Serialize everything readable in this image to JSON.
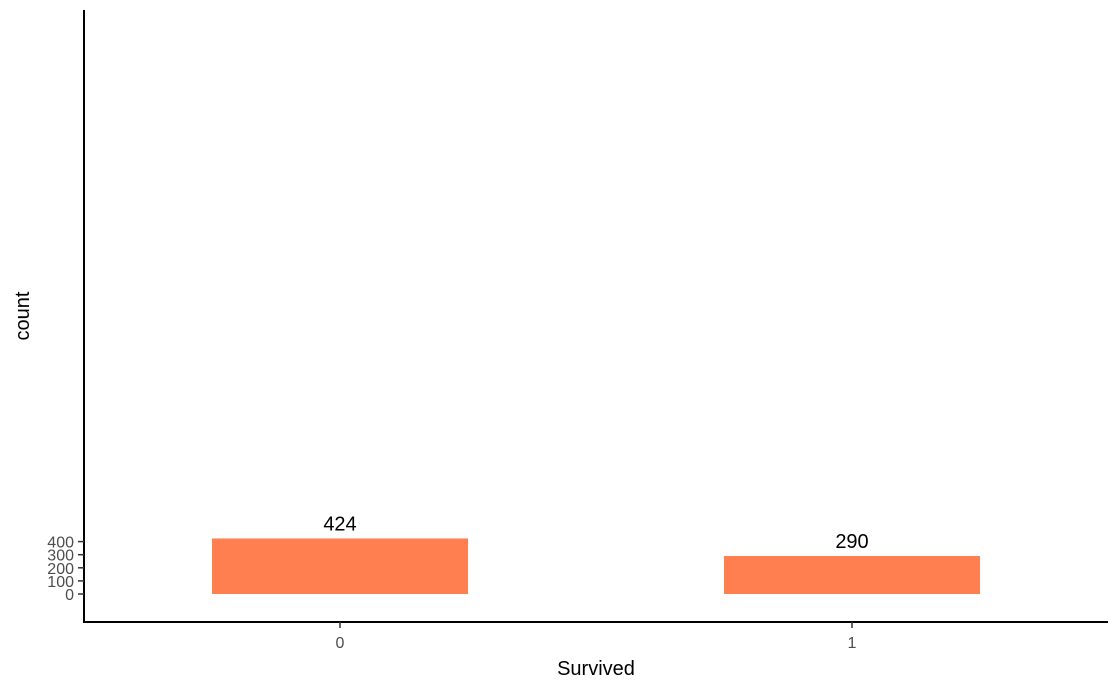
{
  "chart_data": {
    "type": "bar",
    "categories": [
      "0",
      "1"
    ],
    "values": [
      424,
      290
    ],
    "data_labels": [
      "424",
      "290"
    ],
    "title": "",
    "xlabel": "Survived",
    "ylabel": "count",
    "ylim": [
      0,
      445
    ],
    "y_ticks": [
      0,
      100,
      200,
      300,
      400
    ],
    "y_tick_labels": [
      "0",
      "100",
      "200",
      "300",
      "400"
    ],
    "x_tick_labels": [
      "0",
      "1"
    ],
    "grid": false,
    "legend": "none",
    "bar_color": "#FF7F50"
  }
}
